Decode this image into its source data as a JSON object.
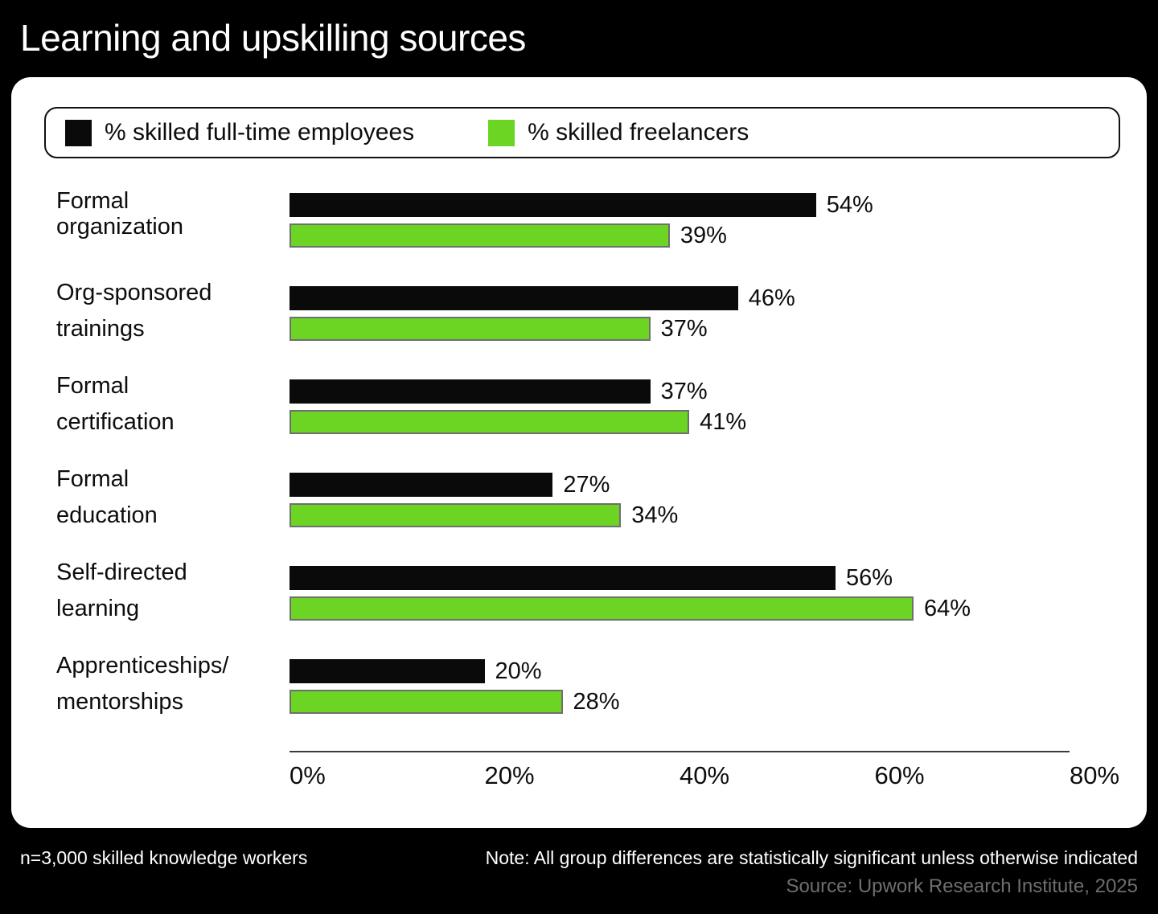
{
  "page": {
    "title": "Learning and upskilling sources"
  },
  "legend": {
    "items": [
      {
        "label": "% skilled full-time employees",
        "color": "#0a0a0a"
      },
      {
        "label": "% skilled freelancers",
        "color": "#6cd422"
      }
    ]
  },
  "chart_data": {
    "type": "bar",
    "orientation": "horizontal",
    "title": "Learning and upskilling sources",
    "categories": [
      "Formal\norganization",
      "Org-sponsored\ntrainings",
      "Formal\ncertification",
      "Formal\neducation",
      "Self-directed\nlearning",
      "Apprenticeships/\nmentorships"
    ],
    "series": [
      {
        "name": "% skilled full-time employees",
        "color": "#0a0a0a",
        "values": [
          54,
          46,
          37,
          27,
          56,
          20
        ]
      },
      {
        "name": "% skilled freelancers",
        "color": "#6cd422",
        "values": [
          39,
          37,
          41,
          34,
          64,
          28
        ]
      }
    ],
    "value_suffix": "%",
    "x_ticks": [
      "0%",
      "20%",
      "40%",
      "60%",
      "80%"
    ],
    "xlim": [
      0,
      80
    ],
    "grid": false,
    "legend_position": "top"
  },
  "footer": {
    "sample": "n=3,000 skilled knowledge workers",
    "note": "Note: All group differences are statistically significant unless otherwise indicated",
    "source": "Source: Upwork Research Institute, 2025"
  }
}
